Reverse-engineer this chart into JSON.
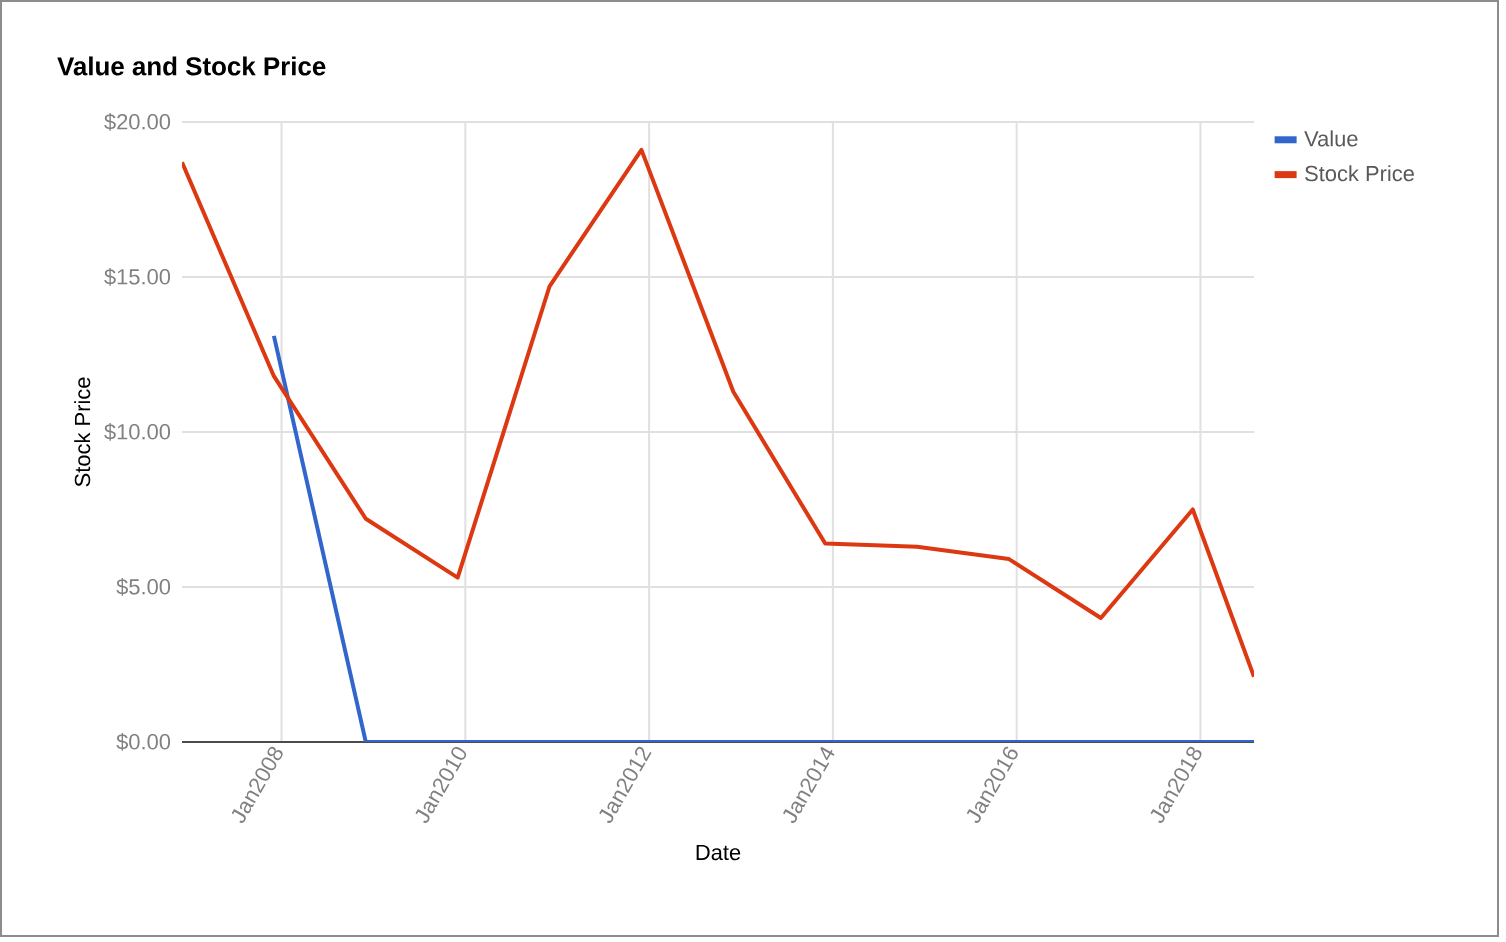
{
  "chart_data": {
    "type": "line",
    "title": "Value and Stock Price",
    "xlabel": "Date",
    "ylabel": "Stock Price",
    "series": [
      {
        "name": "Value",
        "color": "#3366cc",
        "x": [
          "2007-12",
          "2008-12",
          "2009-12",
          "2010-12",
          "2011-12",
          "2012-12",
          "2013-12",
          "2014-12",
          "2015-12",
          "2016-12",
          "2017-12",
          "2018-08"
        ],
        "values": [
          13.1,
          0,
          0,
          0,
          0,
          0,
          0,
          0,
          0,
          0,
          0,
          0
        ]
      },
      {
        "name": "Stock Price",
        "color": "#dc3912",
        "x": [
          "2006-12",
          "2007-12",
          "2008-12",
          "2009-12",
          "2010-12",
          "2011-12",
          "2012-12",
          "2013-12",
          "2014-12",
          "2015-12",
          "2016-12",
          "2017-12",
          "2018-08"
        ],
        "values": [
          18.7,
          11.8,
          7.2,
          5.3,
          14.7,
          19.1,
          11.3,
          6.4,
          6.3,
          5.9,
          4.0,
          7.5,
          2.1
        ]
      }
    ],
    "xlim": [
      "2006-12",
      "2018-08"
    ],
    "xticks": [
      {
        "value": "2008-01",
        "label": "Jan2008"
      },
      {
        "value": "2010-01",
        "label": "Jan2010"
      },
      {
        "value": "2012-01",
        "label": "Jan2012"
      },
      {
        "value": "2014-01",
        "label": "Jan2014"
      },
      {
        "value": "2016-01",
        "label": "Jan2016"
      },
      {
        "value": "2018-01",
        "label": "Jan2018"
      }
    ],
    "ylim": [
      0,
      20
    ],
    "yticks": [
      {
        "value": 0,
        "label": "$0.00"
      },
      {
        "value": 5,
        "label": "$5.00"
      },
      {
        "value": 10,
        "label": "$10.00"
      },
      {
        "value": 15,
        "label": "$15.00"
      },
      {
        "value": 20,
        "label": "$20.00"
      }
    ],
    "grid": true,
    "legend": "right",
    "marker": "none",
    "line_style": "solid"
  }
}
